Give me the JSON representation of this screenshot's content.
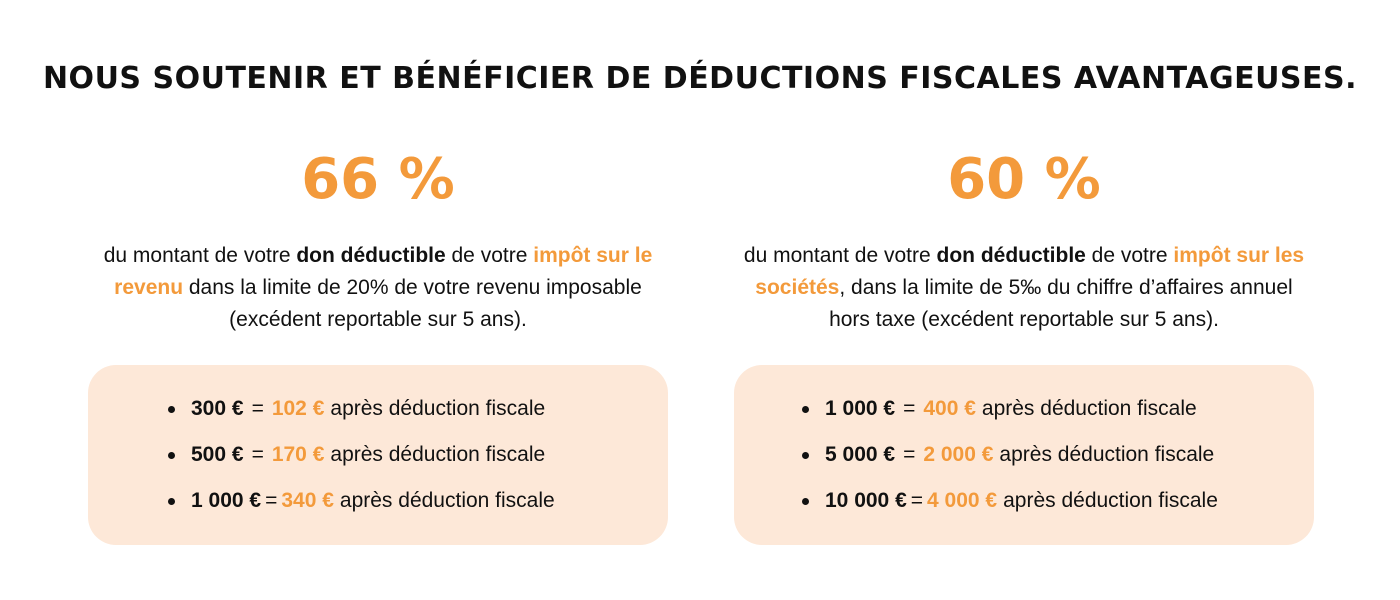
{
  "title": "NOUS SOUTENIR ET BÉNÉFICIER DE DÉDUCTIONS FISCALES AVANTAGEUSES.",
  "colors": {
    "accent": "#f39a3b",
    "box_background": "#fde8d8",
    "text": "#111111"
  },
  "columns": [
    {
      "percent": "66 %",
      "desc": {
        "p1": "du montant de votre ",
        "b1": "don déductible",
        "p2": " de votre ",
        "a1": "impôt sur le revenu",
        "p3": " dans la limite de 20% de votre revenu imposable  (excédent reportable sur 5 ans)."
      },
      "examples": [
        {
          "amount": "300 €",
          "eq": "=",
          "result": "102 €",
          "suffix": "après déduction fiscale"
        },
        {
          "amount": "500 €",
          "eq": "=",
          "result": "170 €",
          "suffix": "après déduction fiscale"
        },
        {
          "amount": "1 000 €",
          "eq": "=",
          "result": "340 €",
          "suffix": "après déduction fiscale"
        }
      ]
    },
    {
      "percent": "60 %",
      "desc": {
        "p1": "du montant de votre ",
        "b1": "don déductible",
        "p2": " de votre ",
        "a1": "impôt sur les sociétés",
        "p3": ", dans la limite de 5‰ du chiffre d’affaires annuel hors taxe (excédent reportable sur 5 ans)."
      },
      "examples": [
        {
          "amount": "1 000 €",
          "eq": "=",
          "result": "400 €",
          "suffix": "après déduction fiscale"
        },
        {
          "amount": "5 000 €",
          "eq": "=",
          "result": "2 000 €",
          "suffix": "après déduction fiscale"
        },
        {
          "amount": "10 000 €",
          "eq": "=",
          "result": "4 000 €",
          "suffix": "après déduction fiscale"
        }
      ]
    }
  ]
}
